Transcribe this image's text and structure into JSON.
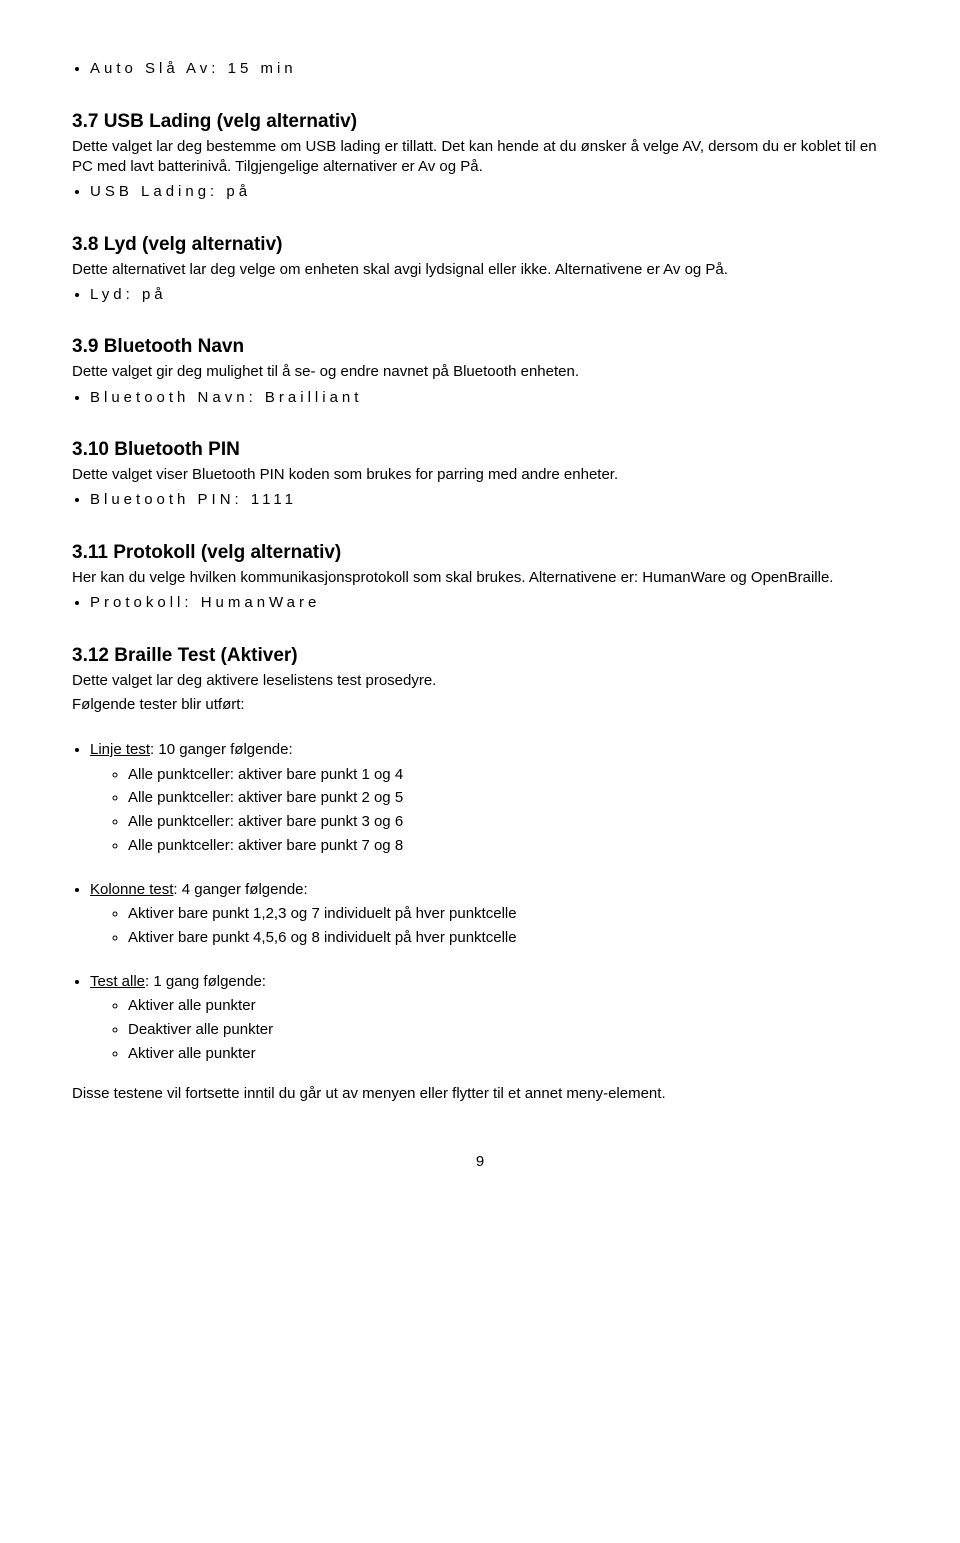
{
  "s0": {
    "bullet": "Auto Slå Av: 15 min"
  },
  "s37": {
    "heading": "3.7 USB Lading (velg alternativ)",
    "p1": "Dette valget lar deg bestemme om USB lading er tillatt. Det kan hende at du ønsker å velge AV, dersom du er koblet til en PC med lavt batterinivå. Tilgjengelige alternativer er Av og På.",
    "bullet": "USB Lading: på"
  },
  "s38": {
    "heading": "3.8 Lyd (velg alternativ)",
    "p1": "Dette alternativet lar deg velge om enheten skal avgi lydsignal eller ikke. Alternativene er Av og På.",
    "bullet": "Lyd: på"
  },
  "s39": {
    "heading": "3.9 Bluetooth Navn",
    "p1": "Dette valget gir deg mulighet til å se- og endre navnet på Bluetooth enheten.",
    "bullet": "Bluetooth Navn: Brailliant"
  },
  "s310": {
    "heading": "3.10 Bluetooth PIN",
    "p1": "Dette valget viser Bluetooth PIN koden som brukes for parring med andre enheter.",
    "bullet": "Bluetooth PIN: 1111"
  },
  "s311": {
    "heading": "3.11 Protokoll (velg alternativ)",
    "p1": "Her kan du velge hvilken kommunikasjonsprotokoll som skal brukes. Alternativene er: HumanWare og OpenBraille.",
    "bullet": "Protokoll: HumanWare"
  },
  "s312": {
    "heading": "3.12 Braille Test (Aktiver)",
    "p1": "Dette valget lar deg aktivere leselistens test prosedyre.",
    "p2": "Følgende tester blir utført:",
    "linje_label": "Linje test",
    "linje_suffix": ": 10 ganger følgende:",
    "linje_items": {
      "0": "Alle punktceller: aktiver bare punkt 1 og 4",
      "1": "Alle punktceller: aktiver bare punkt 2 og 5",
      "2": "Alle punktceller: aktiver bare punkt 3 og 6",
      "3": "Alle punktceller: aktiver bare punkt 7 og 8"
    },
    "kolonne_label": "Kolonne test",
    "kolonne_suffix": ": 4 ganger følgende:",
    "kolonne_items": {
      "0": "Aktiver bare punkt 1,2,3 og 7 individuelt på hver punktcelle",
      "1": "Aktiver bare punkt 4,5,6 og 8 individuelt på hver punktcelle"
    },
    "testalle_label": "Test alle",
    "testalle_suffix": ": 1 gang følgende:",
    "testalle_items": {
      "0": "Aktiver alle punkter",
      "1": "Deaktiver alle punkter",
      "2": "Aktiver alle punkter"
    },
    "closing": "Disse testene vil fortsette inntil du går ut av menyen eller flytter til et annet meny-element."
  },
  "page_number": "9"
}
